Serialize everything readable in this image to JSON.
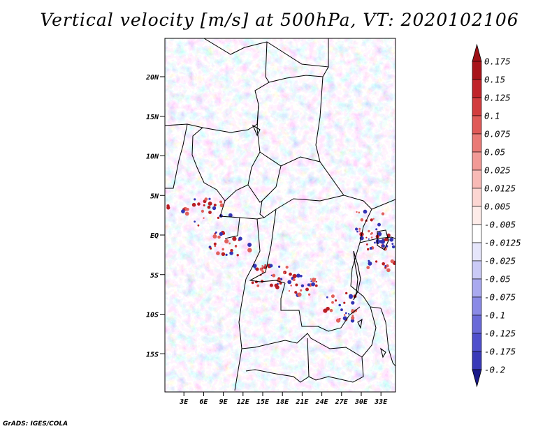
{
  "title": "Vertical velocity [m/s] at 500hPa, VT: 2020102106",
  "credit": "GrADS: IGES/COLA",
  "map": {
    "lat_ticks": [
      {
        "label": "20N",
        "lat": 20
      },
      {
        "label": "15N",
        "lat": 15
      },
      {
        "label": "10N",
        "lat": 10
      },
      {
        "label": "5N",
        "lat": 5
      },
      {
        "label": "EQ",
        "lat": 0
      },
      {
        "label": "5S",
        "lat": -5
      },
      {
        "label": "10S",
        "lat": -10
      },
      {
        "label": "15S",
        "lat": -15
      }
    ],
    "lon_ticks": [
      {
        "label": "3E",
        "lon": 3
      },
      {
        "label": "6E",
        "lon": 6
      },
      {
        "label": "9E",
        "lon": 9
      },
      {
        "label": "12E",
        "lon": 12
      },
      {
        "label": "15E",
        "lon": 15
      },
      {
        "label": "18E",
        "lon": 18
      },
      {
        "label": "21E",
        "lon": 21
      },
      {
        "label": "24E",
        "lon": 24
      },
      {
        "label": "27E",
        "lon": 27
      },
      {
        "label": "30E",
        "lon": 30
      },
      {
        "label": "33E",
        "lon": 33
      }
    ]
  },
  "colorbar": {
    "levels": [
      {
        "label": "0.175",
        "color": "#a8141a"
      },
      {
        "label": "0.15",
        "color": "#c0242a"
      },
      {
        "label": "0.125",
        "color": "#d23c3e"
      },
      {
        "label": "0.1",
        "color": "#e05a58"
      },
      {
        "label": "0.075",
        "color": "#ea7a76"
      },
      {
        "label": "0.05",
        "color": "#f29a96"
      },
      {
        "label": "0.025",
        "color": "#f8bab6"
      },
      {
        "label": "0.0125",
        "color": "#fcd6d2"
      },
      {
        "label": "0.005",
        "color": "#feece9"
      },
      {
        "label": "-0.005",
        "color": "#ffffff"
      },
      {
        "label": "-0.0125",
        "color": "#e6e6fb"
      },
      {
        "label": "-0.025",
        "color": "#cacaf6"
      },
      {
        "label": "-0.05",
        "color": "#a9a9ef"
      },
      {
        "label": "-0.075",
        "color": "#8a8ae6"
      },
      {
        "label": "-0.1",
        "color": "#6a6ad8"
      },
      {
        "label": "-0.125",
        "color": "#4f4fcc"
      },
      {
        "label": "-0.175",
        "color": "#3a3ab8"
      },
      {
        "label": "-0.2",
        "color": "#2424a0"
      }
    ],
    "top_color": "#9e1016",
    "bottom_color": "#1a1a8a"
  }
}
